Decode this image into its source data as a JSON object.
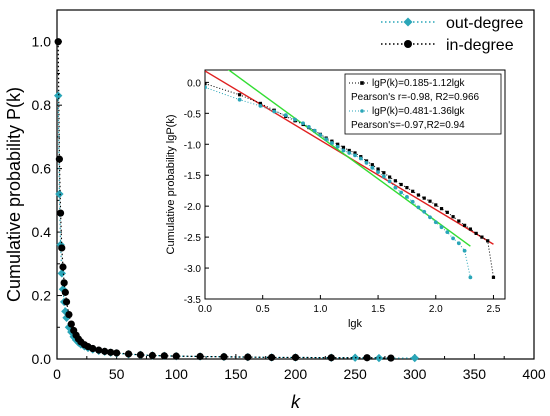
{
  "chart_data": [
    {
      "type": "scatter",
      "xlabel": "k",
      "ylabel": "Cumulative probability P(k)",
      "xlim": [
        0,
        400
      ],
      "ylim": [
        0,
        1.1
      ],
      "x_ticks": [
        "0",
        "50",
        "100",
        "150",
        "200",
        "250",
        "300",
        "350",
        "400"
      ],
      "y_ticks": [
        "0.0",
        "0.2",
        "0.4",
        "0.6",
        "0.8",
        "1.0"
      ],
      "legend_position": "top-right",
      "series": [
        {
          "name": "out-degree",
          "color": "#2aa6b8",
          "marker": "diamond",
          "x": [
            1,
            2,
            3,
            4,
            5,
            6,
            7,
            8,
            10,
            12,
            14,
            16,
            18,
            20,
            23,
            26,
            30,
            35,
            40,
            45,
            50,
            60,
            70,
            80,
            90,
            100,
            120,
            140,
            160,
            180,
            200,
            230,
            250,
            270,
            300
          ],
          "y": [
            0.83,
            0.52,
            0.36,
            0.27,
            0.22,
            0.18,
            0.15,
            0.13,
            0.1,
            0.085,
            0.07,
            0.06,
            0.052,
            0.046,
            0.04,
            0.035,
            0.03,
            0.026,
            0.023,
            0.02,
            0.018,
            0.015,
            0.013,
            0.011,
            0.01,
            0.009,
            0.008,
            0.007,
            0.006,
            0.005,
            0.005,
            0.004,
            0.004,
            0.003,
            0.003
          ]
        },
        {
          "name": "in-degree",
          "color": "#000000",
          "marker": "circle",
          "x": [
            1,
            2,
            3,
            4,
            5,
            6,
            7,
            8,
            10,
            12,
            14,
            16,
            18,
            20,
            23,
            26,
            30,
            35,
            40,
            45,
            50,
            60,
            70,
            80,
            90,
            100,
            120,
            140,
            160,
            180,
            200,
            230,
            260,
            280
          ],
          "y": [
            1.0,
            0.63,
            0.46,
            0.35,
            0.29,
            0.24,
            0.21,
            0.18,
            0.14,
            0.11,
            0.09,
            0.075,
            0.063,
            0.054,
            0.045,
            0.039,
            0.033,
            0.028,
            0.024,
            0.021,
            0.019,
            0.016,
            0.013,
            0.011,
            0.01,
            0.009,
            0.008,
            0.007,
            0.006,
            0.005,
            0.005,
            0.004,
            0.004,
            0.003
          ]
        }
      ]
    },
    {
      "type": "scatter",
      "xlabel": "lgk",
      "ylabel": "Cumulative probability lgP(k)",
      "xlim": [
        0,
        2.6
      ],
      "ylim": [
        -3.5,
        0.2
      ],
      "x_ticks": [
        "0.0",
        "0.5",
        "1.0",
        "1.5",
        "2.0",
        "2.5"
      ],
      "y_ticks": [
        "0.0",
        "-0.5",
        "-1.0",
        "-1.5",
        "-2.0",
        "-2.5",
        "-3.0",
        "-3.5"
      ],
      "legend_position": "top-right",
      "legend": [
        {
          "label": "lgP(k)=0.185-1.12lgk",
          "color": "#000000"
        },
        {
          "label": "Pearson's r=-0.98, R2=0.966",
          "color": "#000000"
        },
        {
          "label": "lgP(k)=0.481-1.36lgk",
          "color": "#2aa6b8"
        },
        {
          "label": "Pearson's=-0.97,R2=0.94",
          "color": "#000000"
        }
      ],
      "fit_lines": [
        {
          "intercept": 0.185,
          "slope": -1.12,
          "color": "#e02020"
        },
        {
          "intercept": 0.481,
          "slope": -1.36,
          "color": "#33dd33"
        }
      ],
      "series": [
        {
          "name": "in-degree",
          "color": "#000000",
          "marker": "square",
          "x": [
            0.0,
            0.3,
            0.48,
            0.6,
            0.7,
            0.78,
            0.85,
            0.9,
            0.95,
            1.0,
            1.05,
            1.1,
            1.15,
            1.2,
            1.25,
            1.3,
            1.35,
            1.4,
            1.45,
            1.5,
            1.55,
            1.6,
            1.65,
            1.7,
            1.75,
            1.8,
            1.85,
            1.9,
            1.95,
            2.0,
            2.05,
            2.1,
            2.15,
            2.2,
            2.25,
            2.3,
            2.35,
            2.4,
            2.45,
            2.5
          ],
          "y": [
            -0.02,
            -0.2,
            -0.34,
            -0.45,
            -0.55,
            -0.62,
            -0.68,
            -0.73,
            -0.78,
            -0.84,
            -0.9,
            -0.95,
            -1.0,
            -1.05,
            -1.1,
            -1.14,
            -1.2,
            -1.27,
            -1.33,
            -1.4,
            -1.46,
            -1.53,
            -1.59,
            -1.65,
            -1.7,
            -1.76,
            -1.82,
            -1.87,
            -1.92,
            -1.98,
            -2.04,
            -2.1,
            -2.17,
            -2.24,
            -2.31,
            -2.37,
            -2.44,
            -2.5,
            -2.56,
            -3.15
          ]
        },
        {
          "name": "out-degree",
          "color": "#2aa6b8",
          "marker": "circle",
          "x": [
            0.0,
            0.3,
            0.48,
            0.6,
            0.7,
            0.78,
            0.85,
            0.9,
            0.95,
            1.0,
            1.05,
            1.1,
            1.15,
            1.2,
            1.25,
            1.3,
            1.35,
            1.4,
            1.45,
            1.5,
            1.55,
            1.6,
            1.65,
            1.7,
            1.75,
            1.8,
            1.85,
            1.9,
            1.95,
            2.0,
            2.05,
            2.1,
            2.15,
            2.2,
            2.25,
            2.3
          ],
          "y": [
            -0.08,
            -0.28,
            -0.38,
            -0.47,
            -0.53,
            -0.6,
            -0.66,
            -0.72,
            -0.78,
            -0.85,
            -0.92,
            -0.98,
            -1.04,
            -1.1,
            -1.14,
            -1.18,
            -1.23,
            -1.3,
            -1.38,
            -1.45,
            -1.52,
            -1.6,
            -1.7,
            -1.78,
            -1.85,
            -1.93,
            -2.02,
            -2.09,
            -2.18,
            -2.26,
            -2.34,
            -2.42,
            -2.52,
            -2.6,
            -2.72,
            -3.15
          ]
        }
      ]
    }
  ]
}
